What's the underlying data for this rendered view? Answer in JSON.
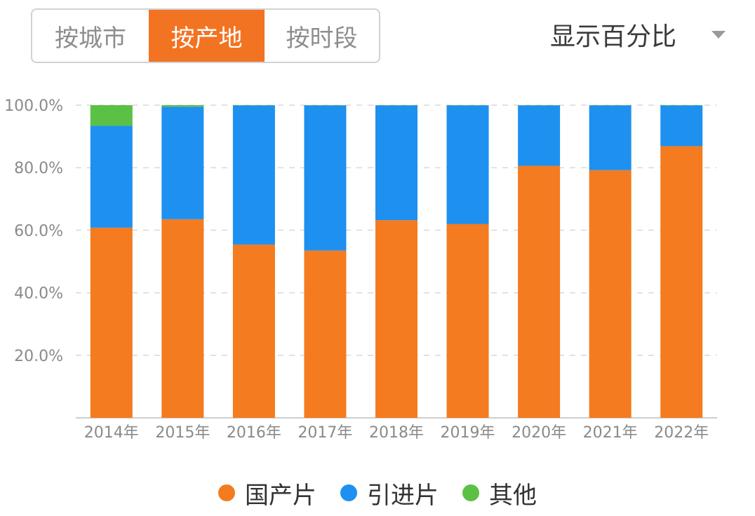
{
  "toggle": {
    "options": [
      "按城市",
      "按产地",
      "按时段"
    ],
    "selected": "按产地"
  },
  "dropdown": {
    "label": "显示百分比"
  },
  "chart_data": {
    "type": "bar",
    "stacked": true,
    "categories": [
      "2014年",
      "2015年",
      "2016年",
      "2017年",
      "2018年",
      "2019年",
      "2020年",
      "2021年",
      "2022年"
    ],
    "series": [
      {
        "name": "国产片",
        "color": "#f47b20",
        "values": [
          60.8,
          63.5,
          55.4,
          53.5,
          63.2,
          62.0,
          80.6,
          79.2,
          86.9
        ]
      },
      {
        "name": "引进片",
        "color": "#1e90f0",
        "values": [
          32.6,
          36.0,
          44.5,
          46.4,
          36.7,
          37.9,
          19.3,
          20.7,
          13.0
        ]
      },
      {
        "name": "其他",
        "color": "#5ac144",
        "values": [
          6.6,
          0.5,
          0.1,
          0.1,
          0.1,
          0.1,
          0.1,
          0.1,
          0.1
        ]
      }
    ],
    "yticks": [
      "20.0%",
      "40.0%",
      "60.0%",
      "80.0%",
      "100.0%"
    ],
    "ylim": [
      0,
      100
    ],
    "grid": true,
    "legend_position": "bottom"
  }
}
